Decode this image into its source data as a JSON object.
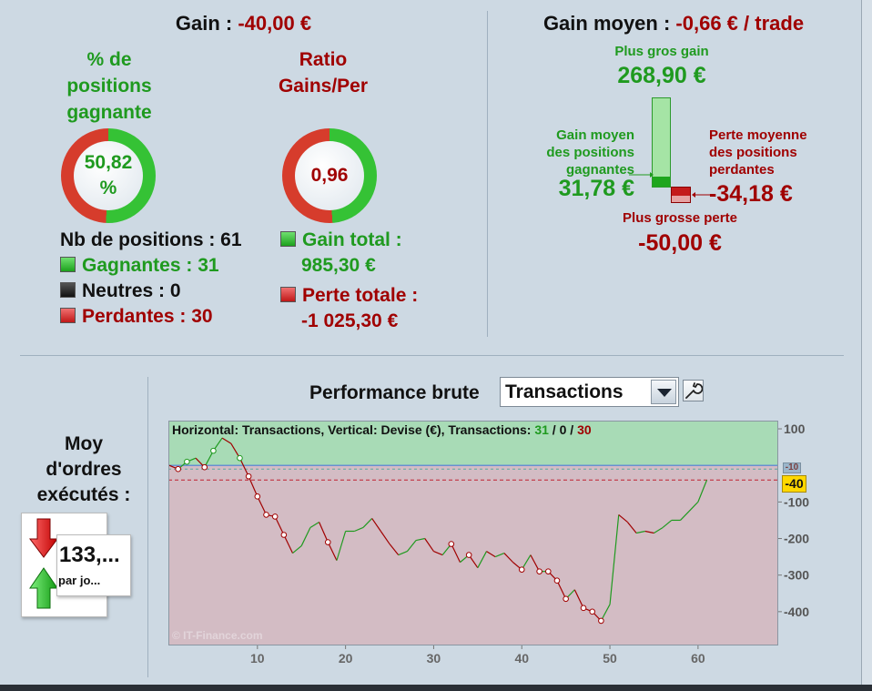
{
  "summary": {
    "gain_label": "Gain :",
    "gain_value": "-40,00 €",
    "winning_pct_title": [
      "% de",
      "positions",
      "gagnante"
    ],
    "winning_pct_value": "50,82\n%",
    "winning_pct": 50.82,
    "ratio_title": [
      "Ratio",
      "Gains/Per"
    ],
    "ratio_value": "0,96",
    "positions_label": "Nb de positions : 61",
    "winners_label": "Gagnantes : 31",
    "neutral_label": "Neutres : 0",
    "losers_label": "Perdantes : 30",
    "total_gain_label": "Gain total :",
    "total_gain_value": "985,30 €",
    "total_loss_label": "Perte totale :",
    "total_loss_value": "-1 025,30 €"
  },
  "average": {
    "label": "Gain moyen :",
    "value": "-0,66 € / trade",
    "biggest_gain_label": "Plus gros gain",
    "biggest_gain_value": "268,90 €",
    "avg_win_label": [
      "Gain moyen",
      "des positions",
      "gagnantes"
    ],
    "avg_win_value": "31,78 €",
    "avg_loss_label": [
      "Perte moyenne",
      "des positions",
      "perdantes"
    ],
    "avg_loss_value": "-34,18 €",
    "biggest_loss_label": "Plus grosse perte",
    "biggest_loss_value": "-50,00 €"
  },
  "orders": {
    "title": [
      "Moy",
      "d'ordres",
      "exécutés :"
    ],
    "value": "133,...",
    "unit": "par jo..."
  },
  "performance": {
    "title": "Performance brute",
    "selector_value": "Transactions",
    "header_text": "Horizontal: Transactions, Vertical: Devise (€), Transactions: ",
    "header_wins": "31",
    "header_sep1": " / ",
    "header_neutral": "0",
    "header_sep2": " / ",
    "header_losses": "30",
    "watermark": "© IT-Finance.com",
    "last_value_label": "-40",
    "hidden_tag": "-10"
  },
  "colors": {
    "gain": "#1f9a1f",
    "loss": "#a00000",
    "gain_zone": "#a8dbb6",
    "loss_zone": "#d3bcc4"
  },
  "chart_data": {
    "type": "line",
    "xlabel": "",
    "ylabel": "",
    "x_ticks": [
      10,
      20,
      30,
      40,
      50,
      60
    ],
    "y_ticks": [
      100,
      -100,
      -200,
      -300,
      -400
    ],
    "xlim": [
      0,
      69
    ],
    "ylim": [
      -490,
      120
    ],
    "x": [
      0,
      1,
      2,
      3,
      4,
      5,
      6,
      7,
      8,
      9,
      10,
      11,
      12,
      13,
      14,
      15,
      16,
      17,
      18,
      19,
      20,
      21,
      22,
      23,
      24,
      25,
      26,
      27,
      28,
      29,
      30,
      31,
      32,
      33,
      34,
      35,
      36,
      37,
      38,
      39,
      40,
      41,
      42,
      43,
      44,
      45,
      46,
      47,
      48,
      49,
      50,
      51,
      52,
      53,
      54,
      55,
      56,
      57,
      58,
      59,
      60,
      61
    ],
    "y": [
      0,
      -10,
      10,
      20,
      -5,
      40,
      75,
      60,
      20,
      -30,
      -85,
      -135,
      -140,
      -190,
      -240,
      -220,
      -170,
      -155,
      -210,
      -260,
      -180,
      -180,
      -170,
      -145,
      -180,
      -215,
      -245,
      -235,
      -205,
      -200,
      -235,
      -245,
      -215,
      -265,
      -245,
      -280,
      -235,
      -250,
      -240,
      -265,
      -285,
      -245,
      -290,
      -290,
      -315,
      -365,
      -340,
      -390,
      -400,
      -425,
      -380,
      -135,
      -155,
      -185,
      -180,
      -185,
      -170,
      -150,
      -150,
      -125,
      -100,
      -40
    ],
    "markers_x": [
      1,
      2,
      4,
      5,
      8,
      9,
      10,
      11,
      12,
      13,
      18,
      32,
      34,
      40,
      42,
      43,
      44,
      45,
      47,
      48,
      49
    ],
    "legend": []
  }
}
